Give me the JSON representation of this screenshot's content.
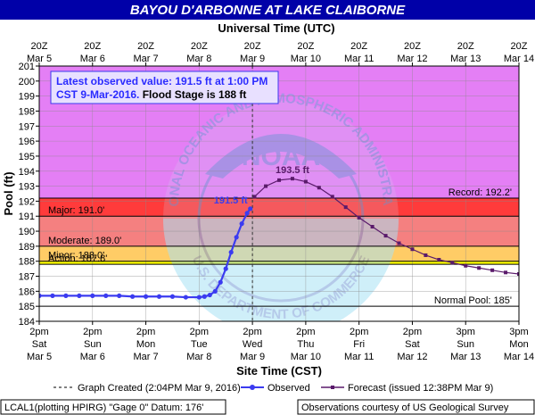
{
  "chart_data": {
    "type": "line",
    "title": "BAYOU D'ARBONNE AT LAKE CLAIBORNE",
    "top_axis_title": "Universal Time (UTC)",
    "xlabel": "Site Time (CST)",
    "ylabel": "Pool (ft)",
    "ylim": [
      184,
      201
    ],
    "y_ticks": [
      184,
      185,
      186,
      187,
      188,
      189,
      190,
      191,
      192,
      193,
      194,
      195,
      196,
      197,
      198,
      199,
      200,
      201
    ],
    "top_ticks": [
      [
        "20Z",
        "Mar  5"
      ],
      [
        "20Z",
        "Mar  6"
      ],
      [
        "20Z",
        "Mar  7"
      ],
      [
        "20Z",
        "Mar  8"
      ],
      [
        "20Z",
        "Mar  9"
      ],
      [
        "20Z",
        "Mar 10"
      ],
      [
        "20Z",
        "Mar 11"
      ],
      [
        "20Z",
        "Mar 12"
      ],
      [
        "20Z",
        "Mar 13"
      ],
      [
        "20Z",
        "Mar 14"
      ]
    ],
    "bottom_ticks": [
      [
        "2pm",
        "Sat",
        "Mar 5"
      ],
      [
        "2pm",
        "Sun",
        "Mar 6"
      ],
      [
        "2pm",
        "Mon",
        "Mar 7"
      ],
      [
        "2pm",
        "Tue",
        "Mar 8"
      ],
      [
        "2pm",
        "Wed",
        "Mar 9"
      ],
      [
        "2pm",
        "Thu",
        "Mar 10"
      ],
      [
        "2pm",
        "Fri",
        "Mar 11"
      ],
      [
        "2pm",
        "Sat",
        "Mar 12"
      ],
      [
        "3pm",
        "Sun",
        "Mar 13"
      ],
      [
        "3pm",
        "Mon",
        "Mar 14"
      ]
    ],
    "series": [
      {
        "name": "Observed",
        "color": "#3b3bf0",
        "x": [
          0,
          0.25,
          0.5,
          0.75,
          1,
          1.25,
          1.5,
          1.75,
          2,
          2.25,
          2.5,
          2.75,
          3,
          3.1,
          3.2,
          3.3,
          3.4,
          3.5,
          3.6,
          3.7,
          3.8,
          3.9,
          3.96
        ],
        "y": [
          185.7,
          185.7,
          185.7,
          185.7,
          185.7,
          185.7,
          185.7,
          185.65,
          185.65,
          185.65,
          185.65,
          185.6,
          185.6,
          185.65,
          185.75,
          186.0,
          186.6,
          187.5,
          188.6,
          189.6,
          190.5,
          191.2,
          191.5
        ]
      },
      {
        "name": "Forecast (issued 12:38PM Mar 9)",
        "color": "#5a1a6b",
        "x": [
          4.04,
          4.25,
          4.5,
          4.75,
          5,
          5.25,
          5.5,
          5.75,
          6,
          6.25,
          6.5,
          6.75,
          7,
          7.25,
          7.5,
          7.75,
          8,
          8.25,
          8.5,
          8.75,
          9
        ],
        "y": [
          192.3,
          193.0,
          193.4,
          193.5,
          193.3,
          192.9,
          192.3,
          191.6,
          190.9,
          190.3,
          189.7,
          189.2,
          188.8,
          188.4,
          188.1,
          187.9,
          187.7,
          187.55,
          187.4,
          187.25,
          187.15
        ]
      }
    ],
    "flood_bands": [
      {
        "name": "Normal",
        "from": 184,
        "to": 187.8,
        "color": "#ffffff"
      },
      {
        "name": "Action",
        "from": 187.8,
        "to": 188,
        "color": "#ffff00"
      },
      {
        "name": "Minor",
        "from": 188,
        "to": 189,
        "color": "#ffcc66"
      },
      {
        "name": "Moderate",
        "from": 189,
        "to": 191,
        "color": "#f58080"
      },
      {
        "name": "Major",
        "from": 191,
        "to": 192.2,
        "color": "#ff3b3b"
      },
      {
        "name": "Record",
        "from": 192.2,
        "to": 201,
        "color": "#e47ff5"
      }
    ],
    "stage_lines": [
      {
        "label": "Record: 192.2'",
        "value": 192.2,
        "align": "right"
      },
      {
        "label": "Major: 191.0'",
        "value": 191.0,
        "align": "left"
      },
      {
        "label": "Moderate: 189.0'",
        "value": 189.0,
        "align": "left"
      },
      {
        "label": "Minor: 188.0'",
        "value": 188.0,
        "align": "left"
      },
      {
        "label": "Action: 187.8'",
        "value": 187.8,
        "align": "left"
      },
      {
        "label": "Normal Pool: 185'",
        "value": 185.0,
        "align": "right"
      }
    ],
    "graph_created_x": 4.0,
    "annotations": [
      {
        "text": "191.5 ft",
        "x": 3.96,
        "y": 191.5,
        "color": "#3b3bf0"
      },
      {
        "text": "193.5 ft",
        "x": 4.75,
        "y": 193.5,
        "color": "#5a1a6b"
      }
    ],
    "info_box": {
      "line1": "Latest observed value: 191.5 ft at 1:00 PM",
      "line2a": "CST 9-Mar-2016.",
      "line2b": " Flood Stage is 188 ft"
    },
    "watermark": {
      "center": "NOAA",
      "arc_top": "NATIONAL OCEANIC AND ATMOSPHERIC ADMINISTRATION",
      "arc_bottom": "U.S. DEPARTMENT OF COMMERCE"
    },
    "legend": {
      "graph_created": "Graph Created (2:04PM Mar 9, 2016)",
      "observed": "Observed",
      "forecast": "Forecast (issued 12:38PM Mar 9)"
    },
    "footer": {
      "left": "LCAL1(plotting HPIRG) \"Gage 0\" Datum: 176'",
      "right": "Observations courtesy of US Geological Survey"
    },
    "colors": {
      "title_bg": "#0000a8",
      "title_fg": "#ffffff",
      "observed": "#3b3bf0",
      "forecast": "#5a1a6b"
    }
  }
}
